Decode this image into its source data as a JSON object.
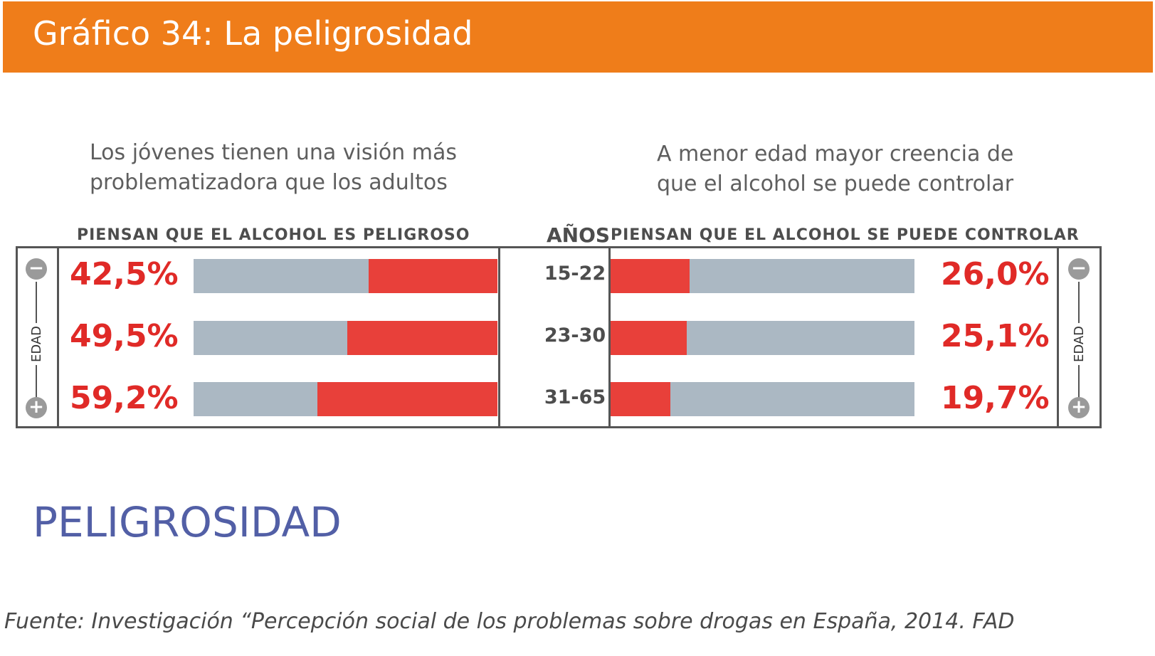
{
  "header": {
    "title": "Gráfico 34: La peligrosidad"
  },
  "left_panel": {
    "subtitle_line1": "Los jóvenes tienen una visión más",
    "subtitle_line2": "problematizadora que los adultos",
    "column_header": "PIENSAN QUE EL ALCOHOL ES PELIGROSO"
  },
  "right_panel": {
    "subtitle_line1": "A menor edad mayor creencia de",
    "subtitle_line2": "que el alcohol se puede controlar",
    "column_header": "PIENSAN QUE EL ALCOHOL SE PUEDE CONTROLAR"
  },
  "center": {
    "header": "AÑOS"
  },
  "axis": {
    "label": "EDAD",
    "minus": "−",
    "plus": "+"
  },
  "chart_data": [
    {
      "type": "bar",
      "orientation": "horizontal",
      "categories": [
        "15-22",
        "23-30",
        "31-65"
      ],
      "values": [
        42.5,
        49.5,
        59.2
      ],
      "labels": [
        "42,5%",
        "49,5%",
        "59,2%"
      ],
      "xlim": [
        0,
        100
      ]
    },
    {
      "type": "bar",
      "orientation": "horizontal",
      "categories": [
        "15-22",
        "23-30",
        "31-65"
      ],
      "values": [
        26.0,
        25.1,
        19.7
      ],
      "labels": [
        "26,0%",
        "25,1%",
        "19,7%"
      ],
      "xlim": [
        0,
        100
      ]
    }
  ],
  "colors": {
    "title_bar": "#ef7d1a",
    "bar_fill": "#e8403a",
    "bar_track": "#abb8c3",
    "percent_text": "#e02a27",
    "section_title": "#525fa6"
  },
  "section_title": "PELIGROSIDAD",
  "source": "Fuente:  Investigación “Percepción social de los problemas sobre drogas en España, 2014. FAD"
}
